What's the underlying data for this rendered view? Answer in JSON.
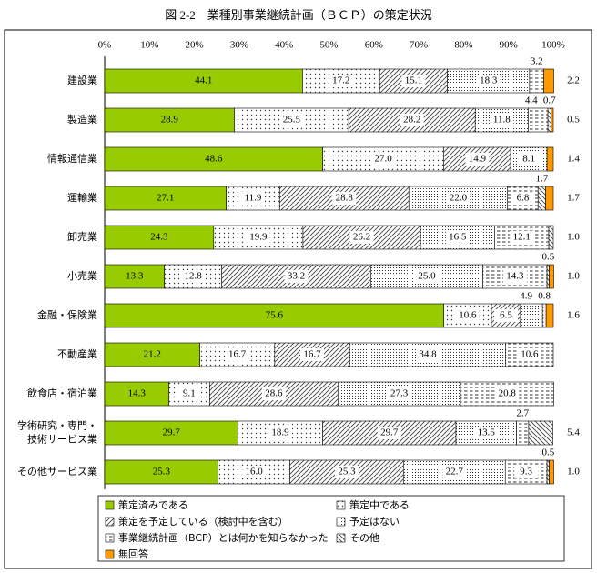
{
  "chart_data": {
    "type": "stacked-bar-horizontal",
    "title": "図 2-2　業種別事業継続計画（ＢＣＰ）の策定状況",
    "categories": [
      "建設業",
      "製造業",
      "情報通信業",
      "運輸業",
      "卸売業",
      "小売業",
      "金融・保険業",
      "不動産業",
      "飲食店・宿泊業",
      "学術研究・専門・\n技術サービス業",
      "その他サービス業"
    ],
    "xlim": [
      0,
      100
    ],
    "xticks": [
      {
        "value": 0,
        "label": "0%"
      },
      {
        "value": 10,
        "label": "10%"
      },
      {
        "value": 20,
        "label": "20%"
      },
      {
        "value": 30,
        "label": "30%"
      },
      {
        "value": 40,
        "label": "40%"
      },
      {
        "value": 50,
        "label": "50%"
      },
      {
        "value": 60,
        "label": "60%"
      },
      {
        "value": 70,
        "label": "70%"
      },
      {
        "value": 80,
        "label": "80%"
      },
      {
        "value": 90,
        "label": "90%"
      },
      {
        "value": 100,
        "label": "100%"
      }
    ],
    "series": [
      {
        "name": "策定済みである",
        "color": "#99cc00",
        "values": [
          44.1,
          28.9,
          48.6,
          27.1,
          24.3,
          13.3,
          75.6,
          21.2,
          14.3,
          29.7,
          25.3
        ],
        "value_labels": [
          "44.1",
          "28.9",
          "48.6",
          "27.1",
          "24.3",
          "13.3",
          "75.6",
          "21.2",
          "14.3",
          "29.7",
          "25.3"
        ]
      },
      {
        "name": "策定中である",
        "color": "#ffffff",
        "values": [
          17.2,
          25.5,
          27.0,
          11.9,
          19.9,
          12.8,
          10.6,
          16.7,
          9.1,
          18.9,
          16.0
        ],
        "value_labels": [
          "17.2",
          "25.5",
          "27.0",
          "11.9",
          "19.9",
          "12.8",
          "10.6",
          "16.7",
          "9.1",
          "18.9",
          "16.0"
        ]
      },
      {
        "name": "策定を予定している（検討中を含む）",
        "color": "#ffffff",
        "values": [
          15.1,
          28.2,
          14.9,
          28.8,
          26.2,
          33.2,
          6.5,
          16.7,
          28.6,
          29.7,
          25.3
        ],
        "value_labels": [
          "15.1",
          "28.2",
          "14.9",
          "28.8",
          "26.2",
          "33.2",
          "6.5",
          "16.7",
          "28.6",
          "29.7",
          "25.3"
        ]
      },
      {
        "name": "予定はない",
        "color": "#ffffff",
        "values": [
          18.3,
          11.8,
          8.1,
          22.0,
          16.5,
          25.0,
          4.9,
          34.8,
          27.3,
          13.5,
          22.7
        ],
        "value_labels": [
          "18.3",
          "11.8",
          "8.1",
          "22.0",
          "16.5",
          "25.0",
          "4.9",
          "34.8",
          "27.3",
          "13.5",
          "22.7"
        ]
      },
      {
        "name": "事業継続計画（BCP）とは何かを知らなかった",
        "color": "#ffffff",
        "values": [
          3.2,
          4.4,
          null,
          6.8,
          12.1,
          14.3,
          0.8,
          10.6,
          20.8,
          2.7,
          9.3
        ],
        "value_labels": [
          "3.2",
          "4.4",
          null,
          "6.8",
          "12.1",
          "14.3",
          "0.8",
          "10.6",
          "20.8",
          "2.7",
          "9.3"
        ]
      },
      {
        "name": "その他",
        "color": "#ffffff",
        "values": [
          null,
          0.7,
          null,
          1.7,
          1.0,
          0.5,
          null,
          null,
          null,
          5.4,
          0.5
        ],
        "value_labels": [
          null,
          "0.7",
          null,
          "1.7",
          "1.0",
          "0.5",
          null,
          null,
          null,
          "5.4",
          "0.5"
        ]
      },
      {
        "name": "無回答",
        "color": "#ff9900",
        "values": [
          2.2,
          0.5,
          1.4,
          1.7,
          null,
          1.0,
          1.6,
          null,
          null,
          null,
          1.0
        ],
        "value_labels": [
          "2.2",
          "0.5",
          "1.4",
          "1.7",
          null,
          "1.0",
          "1.6",
          null,
          null,
          null,
          "1.0"
        ]
      }
    ]
  }
}
